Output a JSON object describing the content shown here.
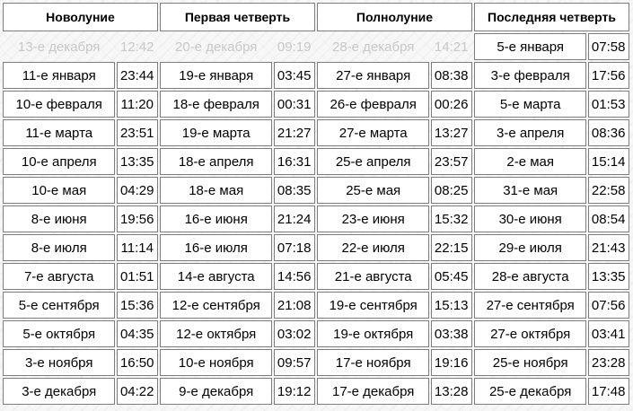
{
  "headers": [
    "Новолуние",
    "Первая четверть",
    "Полнолуние",
    "Последняя четверть"
  ],
  "rows": [
    {
      "cells": [
        {
          "date": "13-е декабря",
          "time": "12:42",
          "past": true
        },
        {
          "date": "20-е декабря",
          "time": "09:19",
          "past": true
        },
        {
          "date": "28-е декабря",
          "time": "14:21",
          "past": true
        },
        {
          "date": "5-е января",
          "time": "07:58",
          "past": false
        }
      ]
    },
    {
      "cells": [
        {
          "date": "11-е января",
          "time": "23:44"
        },
        {
          "date": "19-е января",
          "time": "03:45"
        },
        {
          "date": "27-е января",
          "time": "08:38"
        },
        {
          "date": "3-е февраля",
          "time": "17:56"
        }
      ]
    },
    {
      "cells": [
        {
          "date": "10-е февраля",
          "time": "11:20"
        },
        {
          "date": "18-е февраля",
          "time": "00:31"
        },
        {
          "date": "26-е февраля",
          "time": "00:26"
        },
        {
          "date": "5-е марта",
          "time": "01:53"
        }
      ]
    },
    {
      "cells": [
        {
          "date": "11-е марта",
          "time": "23:51"
        },
        {
          "date": "19-е марта",
          "time": "21:27"
        },
        {
          "date": "27-е марта",
          "time": "13:27"
        },
        {
          "date": "3-е апреля",
          "time": "08:36"
        }
      ]
    },
    {
      "cells": [
        {
          "date": "10-е апреля",
          "time": "13:35"
        },
        {
          "date": "18-е апреля",
          "time": "16:31"
        },
        {
          "date": "25-е апреля",
          "time": "23:57"
        },
        {
          "date": "2-е мая",
          "time": "15:14"
        }
      ]
    },
    {
      "cells": [
        {
          "date": "10-е мая",
          "time": "04:29"
        },
        {
          "date": "18-е мая",
          "time": "08:35"
        },
        {
          "date": "25-е мая",
          "time": "08:25"
        },
        {
          "date": "31-е мая",
          "time": "22:58"
        }
      ]
    },
    {
      "cells": [
        {
          "date": "8-е июня",
          "time": "19:56"
        },
        {
          "date": "16-е июня",
          "time": "21:24"
        },
        {
          "date": "23-е июня",
          "time": "15:32"
        },
        {
          "date": "30-е июня",
          "time": "08:54"
        }
      ]
    },
    {
      "cells": [
        {
          "date": "8-е июля",
          "time": "11:14"
        },
        {
          "date": "16-е июля",
          "time": "07:18"
        },
        {
          "date": "22-е июля",
          "time": "22:15"
        },
        {
          "date": "29-е июля",
          "time": "21:43"
        }
      ]
    },
    {
      "cells": [
        {
          "date": "7-е августа",
          "time": "01:51"
        },
        {
          "date": "14-е августа",
          "time": "14:56"
        },
        {
          "date": "21-е августа",
          "time": "05:45"
        },
        {
          "date": "28-е августа",
          "time": "13:35"
        }
      ]
    },
    {
      "cells": [
        {
          "date": "5-е сентября",
          "time": "15:36"
        },
        {
          "date": "12-е сентября",
          "time": "21:08"
        },
        {
          "date": "19-е сентября",
          "time": "15:13"
        },
        {
          "date": "27-е сентября",
          "time": "07:56"
        }
      ]
    },
    {
      "cells": [
        {
          "date": "5-е октября",
          "time": "04:35"
        },
        {
          "date": "12-е октября",
          "time": "03:02"
        },
        {
          "date": "19-е октября",
          "time": "03:38"
        },
        {
          "date": "27-е октября",
          "time": "03:41"
        }
      ]
    },
    {
      "cells": [
        {
          "date": "3-е ноября",
          "time": "16:50"
        },
        {
          "date": "10-е ноября",
          "time": "09:57"
        },
        {
          "date": "17-е ноября",
          "time": "19:16"
        },
        {
          "date": "25-е ноября",
          "time": "23:28"
        }
      ]
    },
    {
      "cells": [
        {
          "date": "3-е декабря",
          "time": "04:22"
        },
        {
          "date": "9-е декабря",
          "time": "19:12"
        },
        {
          "date": "17-е декабря",
          "time": "13:28"
        },
        {
          "date": "25-е декабря",
          "time": "17:48"
        }
      ]
    }
  ]
}
